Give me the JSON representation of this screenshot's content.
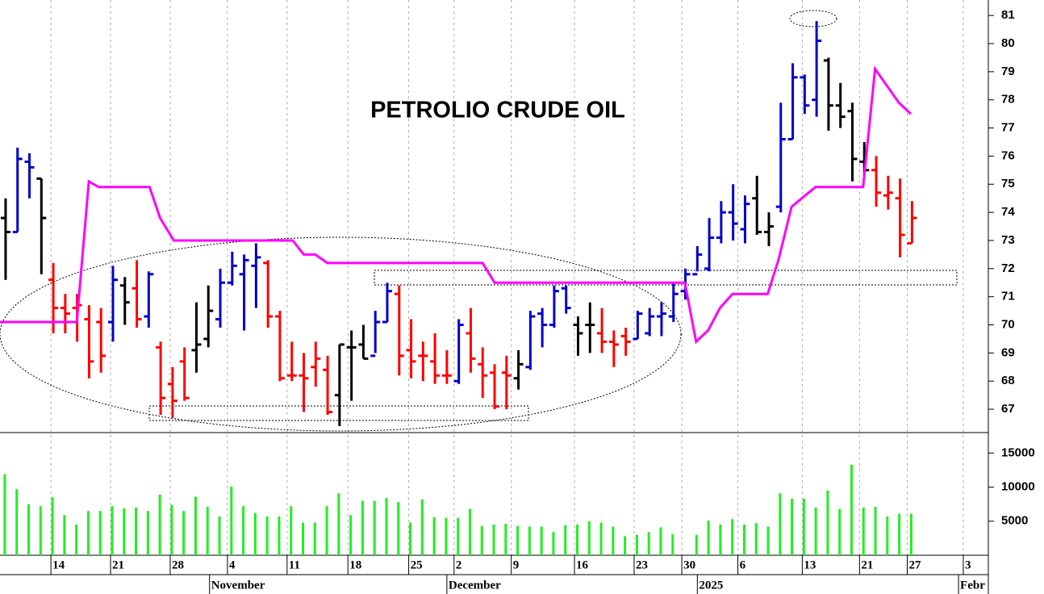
{
  "chart_data": [
    {
      "type": "ohlc",
      "title": "PETROLIO CRUDE OIL",
      "x": [
        0,
        1,
        2,
        3,
        4,
        5,
        6,
        7,
        8,
        9,
        10,
        11,
        12,
        13,
        14,
        15,
        16,
        17,
        18,
        19,
        20,
        21,
        22,
        23,
        24,
        25,
        26,
        27,
        28,
        29,
        30,
        31,
        32,
        33,
        34,
        35,
        36,
        37,
        38,
        39,
        40,
        41,
        42,
        43,
        44,
        45,
        46,
        47,
        48,
        49,
        50,
        51,
        52,
        53,
        54,
        55,
        56,
        57,
        58,
        59,
        60,
        61,
        62,
        63,
        64,
        65,
        66,
        67,
        68,
        69,
        70,
        71,
        72,
        73,
        74,
        75,
        76
      ],
      "open": [
        73.8,
        73.3,
        75.8,
        75.2,
        71.6,
        70.6,
        70.6,
        70.2,
        70.1,
        70.1,
        71.4,
        71.3,
        70.3,
        69.2,
        67.9,
        68.7,
        69.1,
        69.5,
        70.2,
        71.5,
        71.8,
        72.1,
        72.2,
        70.3,
        68.2,
        68.2,
        68.5,
        68.4,
        67.5,
        69.2,
        69.3,
        68.9,
        70.1,
        71.1,
        69.1,
        68.9,
        68.7,
        68.2,
        68.0,
        69.7,
        68.6,
        68.3,
        68.3,
        68.1,
        68.5,
        70.4,
        70.0,
        71.3,
        70.0,
        70.0,
        69.7,
        69.4,
        69.6,
        69.5,
        69.7,
        70.3,
        70.3,
        71.2,
        71.8,
        72.0,
        73.1,
        74.0,
        73.4,
        74.5,
        73.3,
        74.2,
        76.6,
        78.8,
        78.0,
        79.4,
        77.8,
        77.6,
        75.8,
        75.5,
        74.6,
        74.5,
        72.9
      ],
      "high": [
        74.5,
        76.3,
        76.1,
        75.2,
        72.2,
        71.1,
        71.1,
        70.7,
        70.6,
        72.1,
        71.7,
        72.3,
        71.9,
        69.4,
        68.5,
        69.2,
        70.8,
        71.4,
        72.0,
        72.6,
        72.5,
        72.9,
        72.3,
        70.5,
        69.4,
        69.0,
        69.4,
        68.9,
        69.3,
        69.8,
        70.0,
        70.5,
        71.5,
        71.4,
        70.2,
        69.4,
        69.7,
        69.1,
        70.2,
        70.6,
        69.2,
        68.6,
        68.9,
        69.1,
        70.5,
        70.6,
        71.4,
        71.4,
        70.3,
        70.8,
        70.6,
        69.8,
        69.9,
        70.5,
        70.6,
        70.8,
        71.5,
        72.0,
        72.8,
        73.8,
        74.4,
        75.0,
        74.6,
        75.3,
        74.0,
        77.9,
        79.3,
        78.9,
        80.8,
        79.5,
        78.6,
        77.9,
        76.5,
        76.0,
        75.3,
        75.2,
        74.4
      ],
      "low": [
        71.6,
        73.3,
        74.5,
        71.8,
        69.7,
        69.7,
        69.4,
        68.1,
        68.3,
        69.4,
        70.0,
        69.9,
        69.9,
        66.8,
        66.7,
        67.3,
        68.3,
        69.2,
        69.9,
        71.4,
        69.8,
        70.6,
        69.9,
        68.0,
        68.0,
        66.9,
        67.8,
        66.8,
        66.4,
        67.3,
        68.8,
        69.0,
        70.1,
        68.2,
        68.1,
        68.0,
        67.9,
        67.9,
        67.9,
        68.3,
        67.4,
        67.0,
        67.0,
        67.7,
        68.4,
        69.2,
        69.9,
        70.4,
        68.9,
        69.0,
        69.0,
        68.5,
        68.9,
        69.5,
        69.6,
        69.6,
        70.1,
        70.9,
        71.9,
        71.9,
        72.9,
        73.0,
        72.9,
        73.2,
        72.8,
        74.0,
        76.6,
        77.5,
        77.4,
        76.9,
        77.0,
        75.1,
        75.3,
        74.2,
        74.1,
        72.4,
        72.9
      ],
      "close": [
        73.3,
        75.9,
        75.6,
        73.8,
        70.6,
        70.4,
        70.7,
        68.7,
        68.9,
        71.6,
        70.8,
        70.2,
        71.8,
        67.4,
        67.3,
        67.4,
        69.3,
        70.5,
        71.5,
        72.1,
        72.3,
        72.4,
        70.3,
        68.1,
        68.2,
        68.1,
        68.8,
        66.9,
        69.3,
        69.2,
        68.8,
        70.1,
        71.2,
        68.9,
        68.7,
        68.9,
        68.2,
        68.2,
        70.0,
        68.8,
        68.2,
        67.1,
        68.2,
        68.6,
        70.3,
        70.0,
        71.2,
        70.6,
        69.7,
        70.0,
        69.4,
        69.3,
        69.4,
        70.4,
        70.3,
        70.4,
        71.1,
        71.8,
        72.5,
        73.1,
        74.0,
        73.6,
        74.3,
        73.3,
        73.5,
        76.6,
        78.8,
        77.8,
        80.1,
        77.8,
        77.4,
        75.9,
        75.5,
        74.7,
        74.7,
        73.2,
        73.8
      ],
      "colors": [
        "#000000",
        "#0000cc",
        "#0000cc",
        "#000000",
        "#ff0000",
        "#ff0000",
        "#ff0000",
        "#ff0000",
        "#ff0000",
        "#0000cc",
        "#000000",
        "#ff0000",
        "#0000cc",
        "#ff0000",
        "#ff0000",
        "#ff0000",
        "#000000",
        "#000000",
        "#0000cc",
        "#0000cc",
        "#0000cc",
        "#0000cc",
        "#ff0000",
        "#ff0000",
        "#ff0000",
        "#ff0000",
        "#ff0000",
        "#ff0000",
        "#000000",
        "#000000",
        "#000000",
        "#0000cc",
        "#0000cc",
        "#ff0000",
        "#ff0000",
        "#ff0000",
        "#ff0000",
        "#ff0000",
        "#0000cc",
        "#ff0000",
        "#ff0000",
        "#ff0000",
        "#ff0000",
        "#000000",
        "#0000cc",
        "#0000cc",
        "#0000cc",
        "#0000cc",
        "#000000",
        "#000000",
        "#ff0000",
        "#ff0000",
        "#ff0000",
        "#0000cc",
        "#0000cc",
        "#0000cc",
        "#0000cc",
        "#0000cc",
        "#0000cc",
        "#0000cc",
        "#0000cc",
        "#0000cc",
        "#0000cc",
        "#000000",
        "#000000",
        "#0000cc",
        "#0000cc",
        "#0000cc",
        "#0000cc",
        "#000000",
        "#000000",
        "#000000",
        "#000000",
        "#ff0000",
        "#ff0000",
        "#ff0000",
        "#ff0000"
      ],
      "overlay": {
        "color": "#ff00ff",
        "x": [
          -0.47,
          5.97,
          6.98,
          7.8,
          12.07,
          12.95,
          14.1,
          24.07,
          25.0,
          25.97,
          26.98,
          40.0,
          41.0,
          56.95,
          57.9,
          58.9,
          59.9,
          60.95,
          63.9,
          64.8,
          65.9,
          67.9,
          71.9,
          72.9,
          74.9,
          75.9
        ],
        "values": [
          70.1,
          70.1,
          75.1,
          74.9,
          74.9,
          73.8,
          73.0,
          73.0,
          72.5,
          72.5,
          72.2,
          72.2,
          71.5,
          71.5,
          69.4,
          69.8,
          70.6,
          71.1,
          71.1,
          72.3,
          74.2,
          74.9,
          74.9,
          79.1,
          77.9,
          77.5
        ]
      },
      "xlim": [
        -0.47,
        82.4
      ],
      "ylim": [
        66.17,
        81.55
      ],
      "yticks": [
        67,
        68,
        69,
        70,
        71,
        72,
        73,
        74,
        75,
        76,
        77,
        78,
        79,
        80,
        81
      ]
    },
    {
      "type": "bar",
      "color": "#22ee22",
      "x": [
        0,
        1,
        2,
        3,
        4,
        5,
        6,
        7,
        8,
        9,
        10,
        11,
        12,
        13,
        14,
        15,
        16,
        17,
        18,
        19,
        20,
        21,
        22,
        23,
        24,
        25,
        26,
        27,
        28,
        29,
        30,
        31,
        32,
        33,
        34,
        35,
        36,
        37,
        38,
        39,
        40,
        41,
        42,
        43,
        44,
        45,
        46,
        47,
        48,
        49,
        50,
        51,
        52,
        53,
        54,
        55,
        56,
        57,
        58,
        59,
        60,
        61,
        62,
        63,
        64,
        65,
        66,
        67,
        68,
        69,
        70,
        71,
        72,
        73,
        74,
        75,
        76
      ],
      "values": [
        11900,
        9700,
        7500,
        7200,
        8500,
        5900,
        4500,
        6500,
        6500,
        7200,
        6900,
        7000,
        6500,
        8900,
        7400,
        6500,
        8600,
        7100,
        5700,
        10100,
        7200,
        6200,
        5700,
        5700,
        7200,
        4800,
        4800,
        7200,
        9100,
        5900,
        8000,
        8000,
        8400,
        7800,
        4800,
        8200,
        5600,
        5500,
        5500,
        6800,
        4300,
        4500,
        4600,
        4300,
        4200,
        4200,
        3400,
        4400,
        4500,
        5000,
        4800,
        4200,
        2800,
        3000,
        3400,
        4100,
        3100,
        null,
        3000,
        5100,
        4500,
        5300,
        4500,
        4700,
        4200,
        9100,
        8300,
        8300,
        7000,
        9500,
        6800,
        13300,
        7000,
        7100,
        5700,
        6100,
        6100
      ],
      "xlim": [
        -0.47,
        82.4
      ],
      "ylim": [
        0,
        18000
      ],
      "yticks": [
        5000,
        10000,
        15000
      ],
      "xticks": [
        {
          "value": 3.8,
          "label": "14"
        },
        {
          "value": 8.8,
          "label": "21"
        },
        {
          "value": 13.8,
          "label": "28"
        },
        {
          "value": 18.6,
          "label": "4"
        },
        {
          "value": 23.6,
          "label": "11"
        },
        {
          "value": 28.7,
          "label": "18"
        },
        {
          "value": 33.8,
          "label": "25"
        },
        {
          "value": 37.6,
          "label": "2"
        },
        {
          "value": 42.4,
          "label": "9"
        },
        {
          "value": 47.7,
          "label": "16"
        },
        {
          "value": 52.7,
          "label": "23"
        },
        {
          "value": 56.7,
          "label": "30"
        },
        {
          "value": 61.4,
          "label": "6"
        },
        {
          "value": 66.8,
          "label": "13"
        },
        {
          "value": 71.6,
          "label": "21"
        },
        {
          "value": 75.6,
          "label": "27"
        },
        {
          "value": 80.3,
          "label": "3"
        }
      ],
      "months": [
        {
          "value": 17.1,
          "label": "November"
        },
        {
          "value": 37.0,
          "label": "December"
        },
        {
          "value": 58.0,
          "label": "2025"
        },
        {
          "value": 79.9,
          "label": "Febr"
        }
      ]
    }
  ]
}
